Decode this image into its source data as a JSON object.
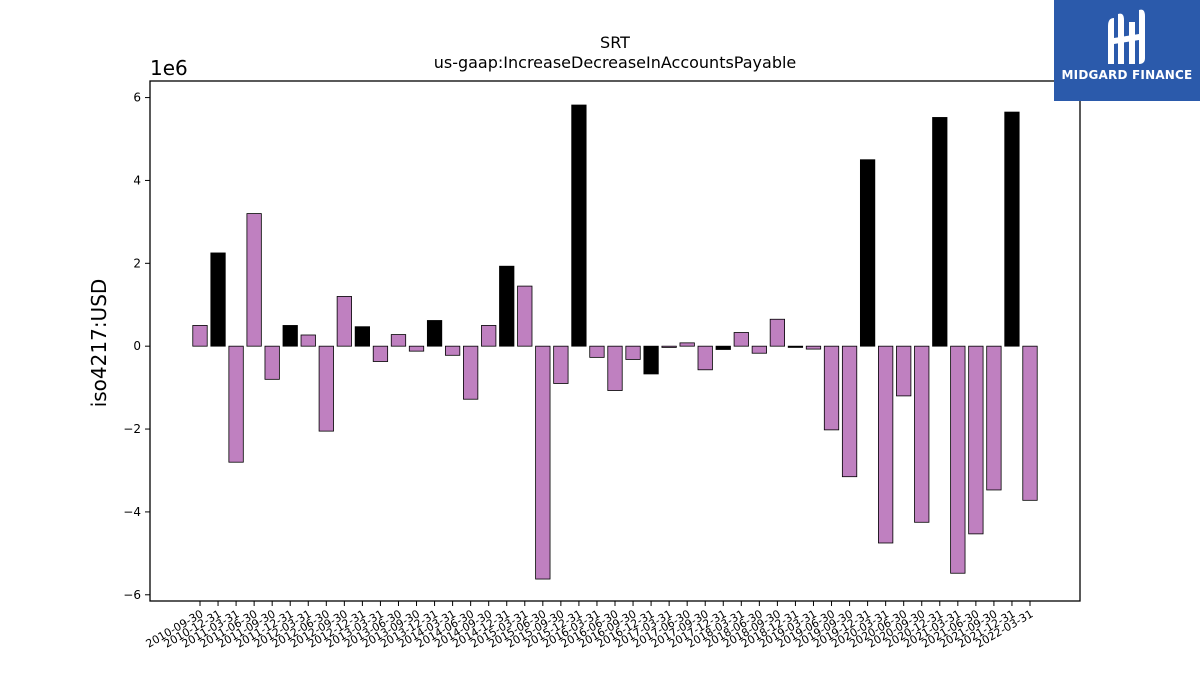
{
  "brand": {
    "name": "MIDGARD FINANCE",
    "color": "#2b5aab"
  },
  "chart_data": {
    "type": "bar",
    "title": "SRT",
    "subtitle": "us-gaap:IncreaseDecreaseInAccountsPayable",
    "ylabel": "iso4217:USD",
    "y_offset_label": "1e6",
    "ylim": [
      -6.15,
      6.4
    ],
    "yticks": [
      -6,
      -4,
      -2,
      0,
      2,
      4,
      6
    ],
    "grid": false,
    "colors": {
      "annual": "#000000",
      "quarterly": "#bf80c0"
    },
    "categories": [
      "2010-09-30",
      "2010-12-31",
      "2011-03-31",
      "2011-06-30",
      "2011-09-30",
      "2011-12-31",
      "2012-03-31",
      "2012-06-30",
      "2012-09-30",
      "2012-12-31",
      "2013-03-31",
      "2013-06-30",
      "2013-09-30",
      "2013-12-31",
      "2014-03-31",
      "2014-06-30",
      "2014-09-30",
      "2014-12-31",
      "2015-03-31",
      "2015-06-30",
      "2015-09-30",
      "2015-12-31",
      "2016-03-31",
      "2016-06-30",
      "2016-09-30",
      "2016-12-31",
      "2017-03-31",
      "2017-06-30",
      "2017-09-30",
      "2017-12-31",
      "2018-03-31",
      "2018-06-30",
      "2018-09-30",
      "2018-12-31",
      "2019-03-31",
      "2019-06-30",
      "2019-09-30",
      "2019-12-31",
      "2020-03-31",
      "2020-06-30",
      "2020-09-30",
      "2020-12-31",
      "2021-03-31",
      "2021-06-30",
      "2021-09-30",
      "2021-12-31",
      "2022-03-31"
    ],
    "values": [
      0.5,
      2.25,
      -2.8,
      3.2,
      -0.8,
      0.5,
      0.27,
      -2.05,
      1.2,
      0.47,
      -0.37,
      0.28,
      -0.12,
      0.62,
      -0.22,
      -1.28,
      0.5,
      1.93,
      1.45,
      -5.62,
      -0.9,
      5.82,
      -0.27,
      -1.07,
      -0.32,
      -0.67,
      -0.03,
      0.08,
      -0.57,
      -0.08,
      0.33,
      -0.17,
      0.65,
      -0.03,
      -0.07,
      -2.02,
      -3.15,
      4.5,
      -4.75,
      -1.2,
      -4.25,
      5.52,
      -5.48,
      -4.53,
      -3.47,
      5.65,
      -3.72
    ],
    "annual": [
      false,
      true,
      false,
      false,
      false,
      true,
      false,
      false,
      false,
      true,
      false,
      false,
      false,
      true,
      false,
      false,
      false,
      true,
      false,
      false,
      false,
      true,
      false,
      false,
      false,
      true,
      false,
      false,
      false,
      true,
      false,
      false,
      false,
      true,
      false,
      false,
      false,
      true,
      false,
      false,
      false,
      true,
      false,
      false,
      false,
      true,
      false
    ]
  }
}
